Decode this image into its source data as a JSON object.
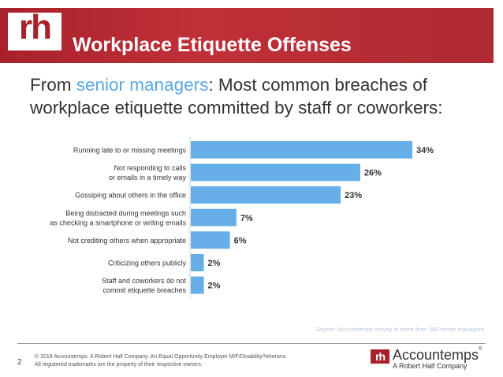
{
  "header": {
    "logo_text": "rh",
    "title": "Workplace Etiquette Offenses"
  },
  "subtitle": {
    "prefix": "From ",
    "highlight": "senior managers",
    "suffix": ": Most common breaches of workplace etiquette committed by staff or coworkers:"
  },
  "colors": {
    "bar": "#66aee6",
    "header": "#a8212a",
    "highlight": "#5aa7e0"
  },
  "chart_data": {
    "type": "bar",
    "orientation": "horizontal",
    "categories": [
      [
        "Running late to or missing meetings"
      ],
      [
        "Not responding to calls",
        "or emails in a timely way"
      ],
      [
        "Gossiping about others in the office"
      ],
      [
        "Being distracted during meetings such",
        "as checking a smartphone or writing emails"
      ],
      [
        "Not crediting others when appropriate"
      ],
      [
        "Criticizing others publicly"
      ],
      [
        "Staff and coworkers do not",
        "commit etiquette breaches"
      ]
    ],
    "values": [
      34,
      26,
      23,
      7,
      6,
      2,
      2
    ],
    "value_labels": [
      "34%",
      "26%",
      "23%",
      "7%",
      "6%",
      "2%",
      "2%"
    ],
    "xlim": [
      0,
      34
    ],
    "grid": false,
    "legend": "none"
  },
  "source": "Source: Accountemps survey of more than 300 senior managers",
  "footer": {
    "page_number": "2",
    "line1": "© 2018 Accountemps. A Robert Half Company. An Equal Opportunity Employer M/F/Disability/Veterans.",
    "line2": "All registered trademarks are the property of their respective owners."
  },
  "brand": {
    "mark": "rh",
    "name": "Accountemps",
    "tm": "®",
    "tagline": "A Robert Half Company"
  }
}
